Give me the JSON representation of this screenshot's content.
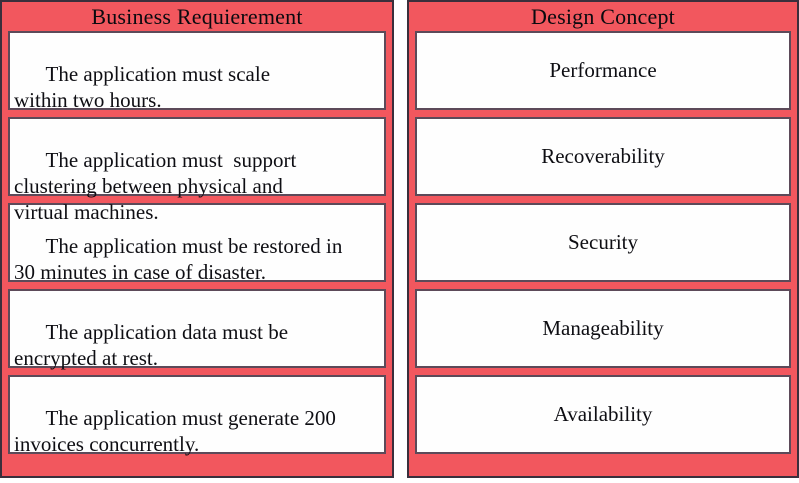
{
  "left_panel": {
    "header": "Business Requierement",
    "items": [
      {
        "text": "The application must scale\nwithin two hours."
      },
      {
        "text": "The application must  support\nclustering between physical and\nvirtual machines."
      },
      {
        "text": "The application must be restored in\n30 minutes in case of disaster."
      },
      {
        "text": "The application data must be\nencrypted at rest."
      },
      {
        "text": "The application must generate 200\ninvoices concurrently."
      }
    ]
  },
  "right_panel": {
    "header": "Design Concept",
    "items": [
      {
        "label": "Performance"
      },
      {
        "label": "Recoverability"
      },
      {
        "label": "Security"
      },
      {
        "label": "Manageability"
      },
      {
        "label": "Availability"
      }
    ]
  },
  "colors": {
    "panel_background": "#f2575e",
    "panel_border": "#3a2f3c",
    "card_border": "#5c4a59",
    "card_background": "#fefefe",
    "text": "#0e0e13"
  }
}
